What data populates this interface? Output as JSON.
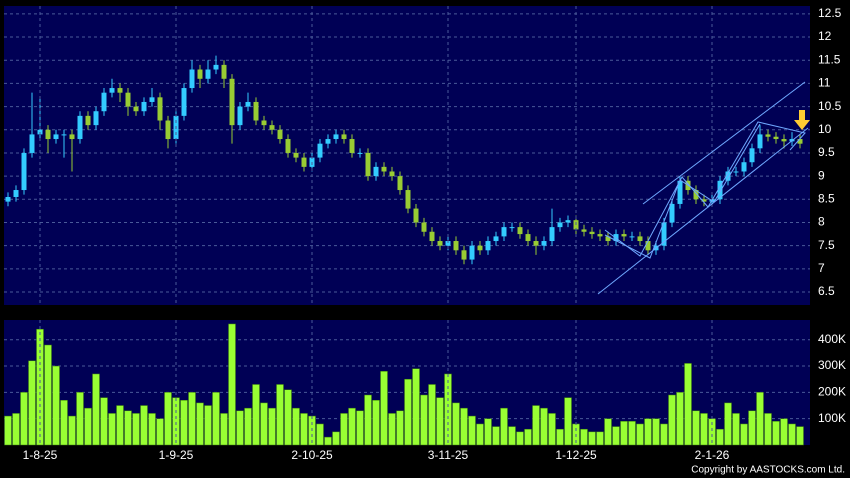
{
  "chart_data": [
    {
      "type": "candlestick",
      "up_color": "#33ccff",
      "down_color": "#99cc33",
      "grid": true,
      "open": [
        8.45,
        8.55,
        8.7,
        9.5,
        9.9,
        10.0,
        9.8,
        9.9,
        9.9,
        9.8,
        10.3,
        10.1,
        10.4,
        10.8,
        10.9,
        10.8,
        10.5,
        10.4,
        10.6,
        10.7,
        10.2,
        9.8,
        10.3,
        10.9,
        11.3,
        11.1,
        11.3,
        11.4,
        11.1,
        10.1,
        10.5,
        10.6,
        10.2,
        10.1,
        10.0,
        9.8,
        9.5,
        9.4,
        9.2,
        9.4,
        9.7,
        9.8,
        9.9,
        9.8,
        9.5,
        9.5,
        9.0,
        9.2,
        9.1,
        9.0,
        8.7,
        8.3,
        8.0,
        7.8,
        7.6,
        7.5,
        7.6,
        7.4,
        7.2,
        7.5,
        7.4,
        7.6,
        7.7,
        7.9,
        7.9,
        7.75,
        7.6,
        7.5,
        7.6,
        7.9,
        8.0,
        8.05,
        7.85,
        7.8,
        7.75,
        7.7,
        7.6,
        7.75,
        7.7,
        7.7,
        7.6,
        7.4,
        7.5,
        8.0,
        8.4,
        8.9,
        8.7,
        8.5,
        8.45,
        8.5,
        8.9,
        9.1,
        9.1,
        9.3,
        9.6,
        9.9,
        9.85,
        9.8,
        9.75,
        9.8
      ],
      "high": [
        8.65,
        8.8,
        9.6,
        10.8,
        10.7,
        10.1,
        10.0,
        10.0,
        10.0,
        10.4,
        10.4,
        10.5,
        10.9,
        11.1,
        11.0,
        10.9,
        10.6,
        10.7,
        10.9,
        10.8,
        10.3,
        10.4,
        11.0,
        11.5,
        11.4,
        11.5,
        11.6,
        11.5,
        11.2,
        10.6,
        10.8,
        10.7,
        10.3,
        10.2,
        10.1,
        9.9,
        9.6,
        9.5,
        9.5,
        9.8,
        9.9,
        10.0,
        10.0,
        9.9,
        9.6,
        9.6,
        9.3,
        9.3,
        9.2,
        9.1,
        8.8,
        8.4,
        8.1,
        7.9,
        7.7,
        7.7,
        7.7,
        7.5,
        7.6,
        7.6,
        7.7,
        7.8,
        8.0,
        8.0,
        8.0,
        7.85,
        7.7,
        7.7,
        8.3,
        8.1,
        8.15,
        8.15,
        7.95,
        7.9,
        7.85,
        7.8,
        7.85,
        7.85,
        7.8,
        7.8,
        7.7,
        7.6,
        8.1,
        8.5,
        9.0,
        9.0,
        8.8,
        8.6,
        8.6,
        9.0,
        9.2,
        9.2,
        9.4,
        9.7,
        10.1,
        10.0,
        9.95,
        9.9,
        9.95,
        9.9
      ],
      "low": [
        8.35,
        8.45,
        8.6,
        9.4,
        9.8,
        9.5,
        9.7,
        9.4,
        9.1,
        9.7,
        10.0,
        10.0,
        10.3,
        10.7,
        10.6,
        10.3,
        10.3,
        10.3,
        10.5,
        10.0,
        9.6,
        9.7,
        10.2,
        10.8,
        10.9,
        11.0,
        11.2,
        10.9,
        9.7,
        10.0,
        10.4,
        10.1,
        10.0,
        9.9,
        9.7,
        9.4,
        9.3,
        9.1,
        9.1,
        9.3,
        9.6,
        9.7,
        9.7,
        9.4,
        9.4,
        8.9,
        8.9,
        9.0,
        8.9,
        8.6,
        8.2,
        7.9,
        7.7,
        7.5,
        7.4,
        7.4,
        7.3,
        7.1,
        7.1,
        7.3,
        7.3,
        7.5,
        7.6,
        7.8,
        7.65,
        7.5,
        7.3,
        7.4,
        7.5,
        7.8,
        7.9,
        7.75,
        7.7,
        7.65,
        7.6,
        7.5,
        7.5,
        7.6,
        7.6,
        7.5,
        7.3,
        7.3,
        7.4,
        7.9,
        8.3,
        8.6,
        8.4,
        8.35,
        8.35,
        8.4,
        8.8,
        9.0,
        9.0,
        9.2,
        9.5,
        9.75,
        9.7,
        9.6,
        9.65,
        9.6
      ],
      "close": [
        8.55,
        8.7,
        9.5,
        9.9,
        10.0,
        9.8,
        9.9,
        9.9,
        9.8,
        10.3,
        10.1,
        10.4,
        10.8,
        10.9,
        10.8,
        10.5,
        10.4,
        10.6,
        10.7,
        10.2,
        9.8,
        10.3,
        10.9,
        11.3,
        11.1,
        11.3,
        11.4,
        11.1,
        10.1,
        10.5,
        10.6,
        10.2,
        10.1,
        10.0,
        9.8,
        9.5,
        9.4,
        9.2,
        9.4,
        9.7,
        9.8,
        9.9,
        9.8,
        9.5,
        9.5,
        9.0,
        9.2,
        9.1,
        9.0,
        8.7,
        8.3,
        8.0,
        7.8,
        7.6,
        7.5,
        7.6,
        7.4,
        7.2,
        7.5,
        7.4,
        7.6,
        7.7,
        7.9,
        7.9,
        7.75,
        7.6,
        7.5,
        7.6,
        7.9,
        8.0,
        8.05,
        7.85,
        7.8,
        7.75,
        7.7,
        7.6,
        7.75,
        7.7,
        7.7,
        7.6,
        7.4,
        7.5,
        8.0,
        8.4,
        8.9,
        8.7,
        8.5,
        8.45,
        8.5,
        8.9,
        9.1,
        9.1,
        9.3,
        9.6,
        9.9,
        9.85,
        9.8,
        9.75,
        9.8,
        9.7
      ],
      "ylim": [
        6.22,
        12.67
      ],
      "yticks": [
        6.5,
        7,
        7.5,
        8,
        8.5,
        9,
        9.5,
        10,
        10.5,
        11,
        11.5,
        12,
        12.5
      ]
    },
    {
      "type": "bar",
      "color": "#99ff33",
      "grid": true,
      "categories": [
        null,
        null,
        null,
        null,
        "1-8-25",
        null,
        null,
        null,
        null,
        null,
        null,
        null,
        null,
        null,
        null,
        null,
        null,
        null,
        null,
        null,
        null,
        "1-9-25",
        null,
        null,
        null,
        null,
        null,
        null,
        null,
        null,
        null,
        null,
        null,
        null,
        null,
        null,
        null,
        null,
        "2-10-25",
        null,
        null,
        null,
        null,
        null,
        null,
        null,
        null,
        null,
        null,
        null,
        null,
        null,
        null,
        null,
        null,
        "3-11-25",
        null,
        null,
        null,
        null,
        null,
        null,
        null,
        null,
        null,
        null,
        null,
        null,
        null,
        null,
        null,
        "1-12-25",
        null,
        null,
        null,
        null,
        null,
        null,
        null,
        null,
        null,
        null,
        null,
        null,
        null,
        null,
        null,
        null,
        "2-1-26",
        null,
        null,
        null,
        null,
        null,
        null,
        null,
        null,
        null,
        null,
        null
      ],
      "values": [
        110000,
        120000,
        200000,
        320000,
        440000,
        380000,
        300000,
        170000,
        110000,
        200000,
        140000,
        270000,
        180000,
        120000,
        150000,
        130000,
        120000,
        150000,
        120000,
        100000,
        200000,
        180000,
        170000,
        200000,
        160000,
        150000,
        200000,
        120000,
        460000,
        130000,
        140000,
        230000,
        160000,
        140000,
        230000,
        210000,
        140000,
        120000,
        110000,
        80000,
        30000,
        50000,
        120000,
        140000,
        130000,
        190000,
        170000,
        280000,
        120000,
        130000,
        250000,
        290000,
        190000,
        230000,
        180000,
        270000,
        160000,
        140000,
        110000,
        80000,
        100000,
        70000,
        140000,
        70000,
        50000,
        60000,
        150000,
        140000,
        120000,
        60000,
        180000,
        80000,
        60000,
        50000,
        50000,
        100000,
        70000,
        90000,
        90000,
        80000,
        100000,
        100000,
        80000,
        190000,
        200000,
        310000,
        130000,
        120000,
        100000,
        60000,
        160000,
        120000,
        80000,
        130000,
        200000,
        120000,
        90000,
        100000,
        80000,
        70000
      ],
      "ylim": [
        0,
        475000
      ],
      "yticks": [
        {
          "value": 100000,
          "label": "100K"
        },
        {
          "value": 200000,
          "label": "200K"
        },
        {
          "value": 300000,
          "label": "300K"
        },
        {
          "value": 400000,
          "label": "400K"
        }
      ]
    }
  ],
  "copyright": "Copyright by AASTOCKS.com Ltd."
}
